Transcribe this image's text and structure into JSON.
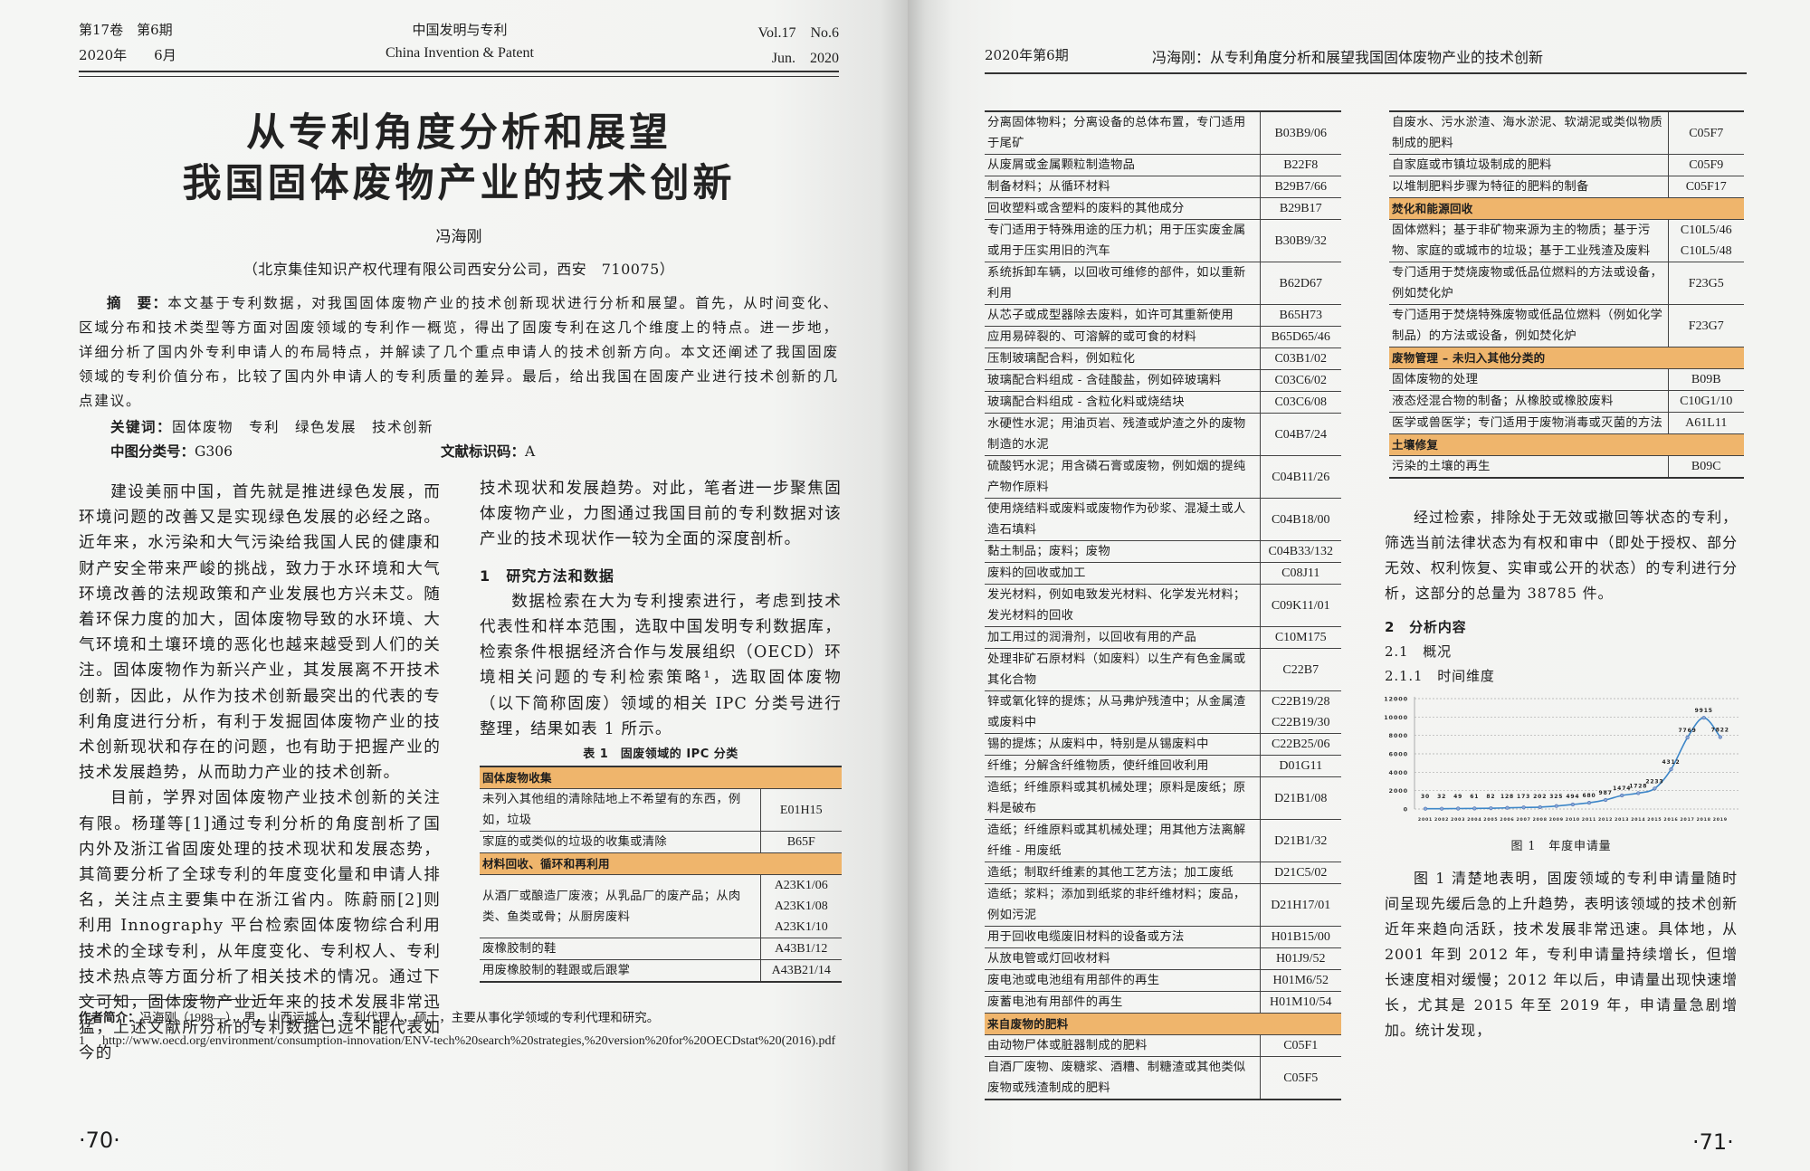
{
  "left_page": {
    "header": {
      "volume_issue": "第17卷　第6期",
      "date_cn": "2020年　　6月",
      "journal_cn": "中国发明与专利",
      "journal_en": "China Invention & Patent",
      "vol_no": "Vol.17　No.6",
      "date_en": "Jun.　2020"
    },
    "title_line1": "从专利角度分析和展望",
    "title_line2": "我国固体废物产业的技术创新",
    "author": "冯海刚",
    "affiliation": "（北京集佳知识产权代理有限公司西安分公司，西安　710075）",
    "abstract_label": "摘　要：",
    "abstract": "本文基于专利数据，对我国固体废物产业的技术创新现状进行分析和展望。首先，从时间变化、区域分布和技术类型等方面对固废领域的专利作一概览，得出了固废专利在这几个维度上的特点。进一步地，详细分析了国内外专利申请人的布局特点，并解读了几个重点申请人的技术创新方向。本文还阐述了我国固废领域的专利价值分布，比较了国内外申请人的专利质量的差异。最后，给出我国在固废产业进行技术创新的几点建议。",
    "keywords_label": "关键词：",
    "keywords": "固体废物　专利　绿色发展　技术创新",
    "clc_label": "中图分类号：",
    "clc": "G306",
    "doc_code_label": "文献标识码：",
    "doc_code": "A",
    "col1_paragraphs": [
      "建设美丽中国，首先就是推进绿色发展，而环境问题的改善又是实现绿色发展的必经之路。近年来，水污染和大气污染给我国人民的健康和财产安全带来严峻的挑战，致力于水环境和大气环境改善的法规政策和产业发展也方兴未艾。随着环保力度的加大，固体废物导致的水环境、大气环境和土壤环境的恶化也越来越受到人们的关注。固体废物作为新兴产业，其发展离不开技术创新，因此，从作为技术创新最突出的代表的专利角度进行分析，有利于发掘固体废物产业的技术创新现状和存在的问题，也有助于把握产业的技术发展趋势，从而助力产业的技术创新。",
      "目前，学界对固体废物产业技术创新的关注有限。杨瑾等[1]通过专利分析的角度剖析了国内外及浙江省固废处理的技术现状和发展态势，其简要分析了全球专利的年度变化量和申请人排名，关注点主要集中在浙江省内。陈蔚丽[2]则利用 Innography 平台检索固体废物综合利用技术的全球专利，从年度变化、专利权人、专利技术热点等方面分析了相关技术的情况。通过下文可知，固体废物产业近年来的技术发展非常迅猛，上述文献所分析的专利数据已远不能代表如今的"
    ],
    "col2_continuation": "技术现状和发展趋势。对此，笔者进一步聚焦固体废物产业，力图通过我国目前的专利数据对该产业的技术现状作一较为全面的深度剖析。",
    "section1_heading": "1　研究方法和数据",
    "section1_paragraph": "数据检索在大为专利搜索进行，考虑到技术代表性和样本范围，选取中国发明专利数据库，检索条件根据经济合作与发展组织（OECD）环境相关问题的专利检索策略¹，选取固体废物（以下简称固废）领域的相关 IPC 分类号进行整理，结果如表 1 所示。",
    "table_caption": "表 1　固废领域的 IPC 分类",
    "table1_rows": [
      {
        "group": "固体废物收集"
      },
      {
        "desc": "未列入其他组的清除陆地上不希望有的东西，例如，垃圾",
        "codes": [
          "E01H15"
        ]
      },
      {
        "desc": "家庭的或类似的垃圾的收集或清除",
        "codes": [
          "B65F"
        ]
      },
      {
        "group": "材料回收、循环和再利用"
      },
      {
        "desc": "从酒厂或酿造厂废液；从乳品厂的废产品；从肉类、鱼类或骨；从厨房废料",
        "codes": [
          "A23K1/06",
          "A23K1/08",
          "A23K1/10"
        ]
      },
      {
        "desc": "废橡胶制的鞋",
        "codes": [
          "A43B1/12"
        ]
      },
      {
        "desc": "用废橡胶制的鞋跟或后跟掌",
        "codes": [
          "A43B21/14"
        ]
      }
    ],
    "author_bio_label": "作者简介：",
    "author_bio": "冯海刚（1988—），男，山西运城人，专利代理人，硕士，主要从事化学领域的专利代理和研究。",
    "footnote_number": "1",
    "footnote_url": "http://www.oecd.org/environment/consumption-innovation/ENV-tech%20search%20strategies,%20version%20for%20OECDstat%20(2016).pdf",
    "page_number": "·70·"
  },
  "right_page": {
    "header": {
      "issue": "2020年第6期",
      "running_title": "冯海刚：从专利角度分析和展望我国固体废物产业的技术创新"
    },
    "table_a_rows": [
      {
        "desc": "分离固体物料；分离设备的总体布置，专门适用于尾矿",
        "codes": [
          "B03B9/06"
        ]
      },
      {
        "desc": "从废屑或金属颗粒制造物品",
        "codes": [
          "B22F8"
        ]
      },
      {
        "desc": "制备材料；从循环材料",
        "codes": [
          "B29B7/66"
        ]
      },
      {
        "desc": "回收塑料或含塑料的废料的其他成分",
        "codes": [
          "B29B17"
        ]
      },
      {
        "desc": "专门适用于特殊用途的压力机；用于压实废金属或用于压实用旧的汽车",
        "codes": [
          "B30B9/32"
        ]
      },
      {
        "desc": "系统拆卸车辆，以回收可维修的部件，如以重新利用",
        "codes": [
          "B62D67"
        ]
      },
      {
        "desc": "从芯子或成型器除去废料，如许可其重新使用",
        "codes": [
          "B65H73"
        ]
      },
      {
        "desc": "应用易碎裂的、可溶解的或可食的材料",
        "codes": [
          "B65D65/46"
        ]
      },
      {
        "desc": "压制玻璃配合料，例如粒化",
        "codes": [
          "C03B1/02"
        ]
      },
      {
        "desc": "玻璃配合料组成 - 含硅酸盐，例如碎玻璃料",
        "codes": [
          "C03C6/02"
        ]
      },
      {
        "desc": "玻璃配合料组成 - 含粒化料或烧结块",
        "codes": [
          "C03C6/08"
        ]
      },
      {
        "desc": "水硬性水泥；用油页岩、残渣或炉渣之外的废物制造的水泥",
        "codes": [
          "C04B7/24"
        ]
      },
      {
        "desc": "硫酸钙水泥；用含磷石膏或废物，例如烟的提纯产物作原料",
        "codes": [
          "C04B11/26"
        ]
      },
      {
        "desc": "使用烧结料或废料或废物作为砂浆、混凝土或人造石填料",
        "codes": [
          "C04B18/00"
        ]
      },
      {
        "desc": "黏土制品；废料；废物",
        "codes": [
          "C04B33/132"
        ]
      },
      {
        "desc": "废料的回收或加工",
        "codes": [
          "C08J11"
        ]
      },
      {
        "desc": "发光材料，例如电致发光材料、化学发光材料；发光材料的回收",
        "codes": [
          "C09K11/01"
        ]
      },
      {
        "desc": "加工用过的润滑剂，以回收有用的产品",
        "codes": [
          "C10M175"
        ]
      },
      {
        "desc": "处理非矿石原材料（如废料）以生产有色金属或其化合物",
        "codes": [
          "C22B7"
        ]
      },
      {
        "desc": "锌或氧化锌的提炼；从马弗炉残渣中；从金属渣或废料中",
        "codes": [
          "C22B19/28",
          "C22B19/30"
        ]
      },
      {
        "desc": "锡的提炼；从废料中，特别是从锡废料中",
        "codes": [
          "C22B25/06"
        ]
      },
      {
        "desc": "纤维；分解含纤维物质，使纤维回收利用",
        "codes": [
          "D01G11"
        ]
      },
      {
        "desc": "造纸；纤维原料或其机械处理；原料是废纸；原料是破布",
        "codes": [
          "D21B1/08"
        ]
      },
      {
        "desc": "造纸；纤维原料或其机械处理；用其他方法离解纤维 - 用废纸",
        "codes": [
          "D21B1/32"
        ]
      },
      {
        "desc": "造纸；制取纤维素的其他工艺方法；加工废纸",
        "codes": [
          "D21C5/02"
        ]
      },
      {
        "desc": "造纸；浆料；添加到纸浆的非纤维材料；废品，例如污泥",
        "codes": [
          "D21H17/01"
        ]
      },
      {
        "desc": "用于回收电缆废旧材料的设备或方法",
        "codes": [
          "H01B15/00"
        ]
      },
      {
        "desc": "从放电管或灯回收材料",
        "codes": [
          "H01J9/52"
        ]
      },
      {
        "desc": "废电池或电池组有用部件的再生",
        "codes": [
          "H01M6/52"
        ]
      },
      {
        "desc": "废蓄电池有用部件的再生",
        "codes": [
          "H01M10/54"
        ]
      },
      {
        "group": "来自废物的肥料"
      },
      {
        "desc": "由动物尸体或脏器制成的肥料",
        "codes": [
          "C05F1"
        ]
      },
      {
        "desc": "自酒厂废物、废糖浆、酒糟、制糖渣或其他类似废物或残渣制成的肥料",
        "codes": [
          "C05F5"
        ]
      }
    ],
    "table_b_rows": [
      {
        "desc": "自废水、污水淤渣、海水淤泥、软湖泥或类似物质制成的肥料",
        "codes": [
          "C05F7"
        ]
      },
      {
        "desc": "自家庭或市镇垃圾制成的肥料",
        "codes": [
          "C05F9"
        ]
      },
      {
        "desc": "以堆制肥料步骤为特征的肥料的制备",
        "codes": [
          "C05F17"
        ]
      },
      {
        "group": "焚化和能源回收"
      },
      {
        "desc": "固体燃料；基于非矿物来源为主的物质；基于污物、家庭的或城市的垃圾；基于工业残渣及废料",
        "codes": [
          "C10L5/46",
          "C10L5/48"
        ]
      },
      {
        "desc": "专门适用于焚烧废物或低品位燃料的方法或设备，例如焚化炉",
        "codes": [
          "F23G5"
        ]
      },
      {
        "desc": "专门适用于焚烧特殊废物或低品位燃料（例如化学制品）的方法或设备，例如焚化炉",
        "codes": [
          "F23G7"
        ]
      },
      {
        "group": "废物管理 – 未归入其他分类的"
      },
      {
        "desc": "固体废物的处理",
        "codes": [
          "B09B"
        ]
      },
      {
        "desc": "液态烃混合物的制备；从橡胶或橡胶废料",
        "codes": [
          "C10G1/10"
        ]
      },
      {
        "desc": "医学或兽医学；专门适用于废物消毒或灭菌的方法",
        "codes": [
          "A61L11"
        ]
      },
      {
        "group": "土壤修复"
      },
      {
        "desc": "污染的土壤的再生",
        "codes": [
          "B09C"
        ]
      }
    ],
    "paragraph_search": "经过检索，排除处于无效或撤回等状态的专利，筛选当前法律状态为有权和审中（即处于授权、部分无效、权利恢复、实审或公开的状态）的专利进行分析，这部分的总量为 38785 件。",
    "section2_heading": "2　分析内容",
    "section21_heading": "2.1　概况",
    "section211_heading": "2.1.1　时间维度",
    "figure_caption": "图 1　年度申请量",
    "paragraph_fig": "图 1 清楚地表明，固废领域的专利申请量随时间呈现先缓后急的上升趋势，表明该领域的技术创新近年来趋向活跃，技术发展非常迅速。具体地，从 2001 年到 2012 年，专利申请量持续增长，但增长速度相对缓慢；2012 年以后，申请量出现快速增长，尤其是 2015 年至 2019 年，申请量急剧增加。统计发现，",
    "page_number": "·71·"
  },
  "colors": {
    "group_header_fill": "#efb56c",
    "line_series": "#3c86c8",
    "marker_fill": "#8aa8d8"
  },
  "chart_data": {
    "type": "line",
    "title": "图 1　年度申请量",
    "categories": [
      "2001",
      "2002",
      "2003",
      "2004",
      "2005",
      "2006",
      "2007",
      "2008",
      "2009",
      "2010",
      "2011",
      "2012",
      "2013",
      "2014",
      "2015",
      "2016",
      "2017",
      "2018",
      "2019"
    ],
    "values": [
      30,
      32,
      49,
      61,
      82,
      128,
      173,
      202,
      325,
      494,
      680,
      987,
      1474,
      1728,
      2233,
      4312,
      7769,
      9915,
      7822
    ],
    "data_labels": [
      "30",
      "32",
      "49",
      "61",
      "82",
      "128",
      "173",
      "202",
      "325",
      "494",
      "680",
      "987",
      "1474",
      "1728",
      "2233",
      "4312",
      "7769",
      "9915",
      "7822"
    ],
    "yticks": [
      "0",
      "2000",
      "4000",
      "6000",
      "8000",
      "10000",
      "12000"
    ],
    "ylim": [
      0,
      12000
    ],
    "grid": "horizontal dashed",
    "smooth": true,
    "legend": "none"
  }
}
